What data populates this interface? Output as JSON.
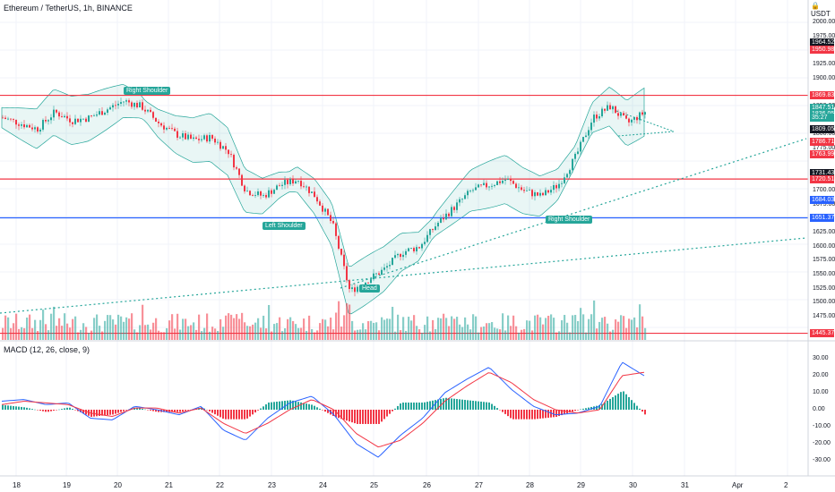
{
  "symbol_title": "Ethereum / TetherUS, 1h, BINANCE",
  "currency_badge": "USDT",
  "macd_title": "MACD (12, 26, close, 9)",
  "price_axis": [
    "2000.00",
    "1975.00",
    "1925.00",
    "1900.00",
    "1850.00",
    "1800.00",
    "1775.00",
    "1700.00",
    "1675.00",
    "1625.00",
    "1600.00",
    "1575.00",
    "1550.00",
    "1525.00",
    "1500.00",
    "1475.00"
  ],
  "price_badges": [
    {
      "text": "1964.52",
      "color": "#131722"
    },
    {
      "text": "1950.98",
      "color": "#f23645"
    },
    {
      "text": "1869.83",
      "color": "#f23645"
    },
    {
      "text": "1847.51",
      "color": "#26a69a"
    },
    {
      "text": "1836.05",
      "color": "#26a69a"
    },
    {
      "text": "35:27",
      "color": "#26a69a"
    },
    {
      "text": "1809.05",
      "color": "#131722"
    },
    {
      "text": "1786.71",
      "color": "#f23645"
    },
    {
      "text": "1763.99",
      "color": "#f23645"
    },
    {
      "text": "1731.43",
      "color": "#131722"
    },
    {
      "text": "1720.51",
      "color": "#f23645"
    },
    {
      "text": "1684.03",
      "color": "#2962ff"
    },
    {
      "text": "1651.37",
      "color": "#2962ff"
    },
    {
      "text": "1445.37",
      "color": "#f23645"
    }
  ],
  "macd_axis": [
    "30.00",
    "20.00",
    "10.00",
    "0.00",
    "-10.00",
    "-20.00",
    "-30.00"
  ],
  "time_axis": [
    "18",
    "19",
    "20",
    "21",
    "22",
    "23",
    "24",
    "25",
    "26",
    "27",
    "28",
    "29",
    "30",
    "31",
    "Apr",
    "2"
  ],
  "pattern_labels": {
    "right_shoulder_left": "Right Shoulder",
    "left_shoulder": "Left Shoulder",
    "head": "Head",
    "right_shoulder_right": "Right Shoulder"
  },
  "colors": {
    "up": "#26a69a",
    "down": "#f23645",
    "macd": "#2962ff",
    "signal": "#f23645",
    "band": "#26a69a",
    "resistance": "#f23645",
    "support": "#2962ff"
  },
  "chart_data": {
    "type": "candlestick",
    "title": "Ethereum / TetherUS, 1h, BINANCE",
    "ylim": [
      1430,
      2030
    ],
    "x": [
      "18",
      "19",
      "20",
      "21",
      "22",
      "23",
      "24",
      "25",
      "26",
      "27",
      "28",
      "29",
      "30",
      "31",
      "Apr",
      "2"
    ],
    "price_path": [
      1830,
      1820,
      1810,
      1840,
      1825,
      1830,
      1845,
      1860,
      1850,
      1820,
      1800,
      1790,
      1795,
      1770,
      1700,
      1690,
      1710,
      1720,
      1690,
      1640,
      1520,
      1540,
      1560,
      1590,
      1600,
      1640,
      1670,
      1700,
      1710,
      1720,
      1700,
      1690,
      1710,
      1760,
      1830,
      1850,
      1820,
      1840
    ],
    "horizontal_levels": [
      1869.83,
      1720.51,
      1651.37,
      1445.37
    ],
    "macd": [
      5,
      6,
      3,
      4,
      -5,
      -6,
      2,
      0,
      -3,
      2,
      -12,
      -18,
      -5,
      4,
      8,
      -3,
      -20,
      -28,
      -15,
      -5,
      10,
      18,
      25,
      12,
      2,
      -3,
      -2,
      2,
      28,
      20
    ],
    "signal": [
      3,
      5,
      4,
      3,
      -2,
      -4,
      1,
      1,
      -2,
      1,
      -8,
      -14,
      -8,
      0,
      6,
      0,
      -14,
      -22,
      -18,
      -8,
      5,
      14,
      22,
      16,
      6,
      0,
      -2,
      0,
      20,
      22
    ]
  }
}
